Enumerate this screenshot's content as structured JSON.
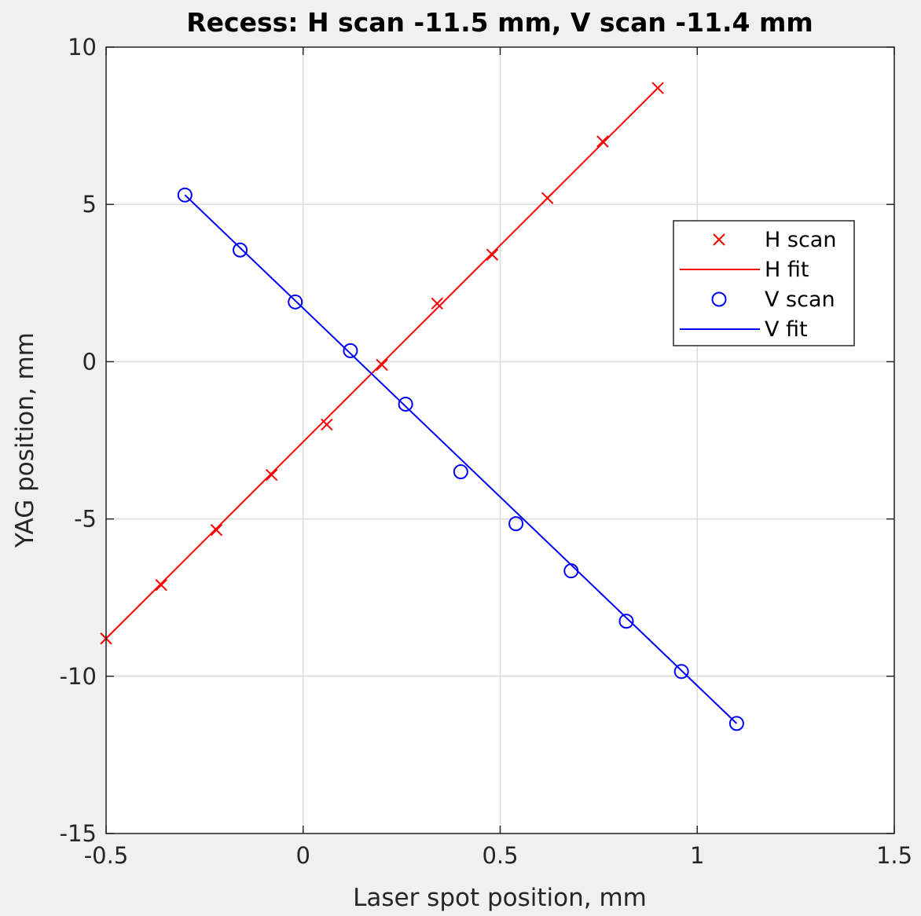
{
  "chart_data": {
    "type": "scatter",
    "title": "Recess: H scan -11.5 mm, V scan -11.4 mm",
    "xlabel": "Laser spot position, mm",
    "ylabel": "YAG position, mm",
    "xlim": [
      -0.5,
      1.5
    ],
    "ylim": [
      -15,
      10
    ],
    "xticks": [
      -0.5,
      0,
      0.5,
      1,
      1.5
    ],
    "xtick_labels": [
      "-0.5",
      "0",
      "0.5",
      "1",
      "1.5"
    ],
    "yticks": [
      -15,
      -10,
      -5,
      0,
      5,
      10
    ],
    "ytick_labels": [
      "-15",
      "-10",
      "-5",
      "0",
      "5",
      "10"
    ],
    "grid": true,
    "legend_position": "upper-right",
    "series": [
      {
        "name": "H scan",
        "kind": "marker",
        "marker": "x",
        "color": "#ff0000",
        "x": [
          -0.5,
          -0.36,
          -0.22,
          -0.08,
          0.06,
          0.2,
          0.34,
          0.48,
          0.62,
          0.76,
          0.9
        ],
        "y": [
          -8.8,
          -7.1,
          -5.35,
          -3.6,
          -2.0,
          -0.1,
          1.85,
          3.4,
          5.2,
          7.0,
          8.7
        ]
      },
      {
        "name": "H fit",
        "kind": "line",
        "color": "#ff0000",
        "x": [
          -0.5,
          0.9
        ],
        "y": [
          -8.8,
          8.7
        ]
      },
      {
        "name": "V scan",
        "kind": "marker",
        "marker": "o",
        "color": "#0000ff",
        "x": [
          -0.3,
          -0.16,
          -0.02,
          0.12,
          0.26,
          0.4,
          0.54,
          0.68,
          0.82,
          0.96,
          1.1
        ],
        "y": [
          5.3,
          3.55,
          1.9,
          0.35,
          -1.35,
          -3.5,
          -5.15,
          -6.65,
          -8.25,
          -9.85,
          -11.5
        ]
      },
      {
        "name": "V fit",
        "kind": "line",
        "color": "#0000ff",
        "x": [
          -0.3,
          1.1
        ],
        "y": [
          5.3,
          -11.5
        ]
      }
    ]
  }
}
